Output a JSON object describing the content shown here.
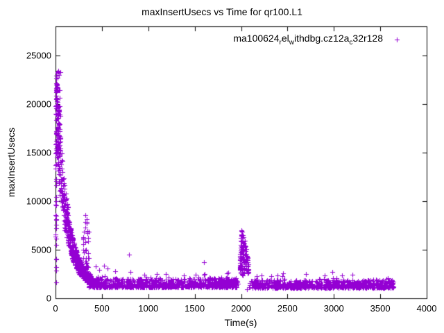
{
  "figure": {
    "background": "#ffffff",
    "border_color": "#000000",
    "text_color": "#000000"
  },
  "chart_data": {
    "type": "scatter",
    "title": "maxInsertUsecs vs Time for qr100.L1",
    "xlabel": "Time(s)",
    "ylabel": "maxInsertUsecs",
    "xlim": [
      0,
      4000
    ],
    "ylim": [
      0,
      28000
    ],
    "xticks": [
      0,
      500,
      1000,
      1500,
      2000,
      2500,
      3000,
      3500,
      4000
    ],
    "yticks": [
      0,
      5000,
      10000,
      15000,
      20000,
      25000
    ],
    "grid": false,
    "legend_position": "top-right-inside",
    "series": [
      {
        "name": "ma100624_rel_withdbg.cz12a_c32r128",
        "label_segments": [
          {
            "text": "ma100624"
          },
          {
            "text": "r",
            "sub": true
          },
          {
            "text": "el"
          },
          {
            "text": "w",
            "sub": true
          },
          {
            "text": "ithdbg.cz12a"
          },
          {
            "text": "c",
            "sub": true
          },
          {
            "text": "32r128"
          }
        ],
        "marker": "plus",
        "color": "#9400d3",
        "summary": "Warmup decay from ~23500 usec near t=0 down to a steady band of ~1100-2100 usec after t=500; secondary bump ~3000-8500 usec near t=300-360; isolated outliers near (800,4500) and (1600,3700); spike cluster ~2300-7000 usec near t=2000; steady ~1100-1900 usec band until data ends near t=3650.",
        "points_explicit": [
          [
            30,
            23450
          ],
          [
            22,
            22700
          ],
          [
            40,
            21400
          ],
          [
            10,
            20600
          ],
          [
            48,
            19800
          ],
          [
            795,
            4480
          ],
          [
            805,
            2700
          ],
          [
            1600,
            3720
          ],
          [
            325,
            8550
          ],
          [
            333,
            8150
          ],
          [
            318,
            7300
          ],
          [
            345,
            6900
          ],
          [
            352,
            6200
          ],
          [
            2005,
            7000
          ],
          [
            2012,
            6850
          ],
          [
            2002,
            6600
          ],
          [
            2450,
            2600
          ],
          [
            2980,
            2700
          ],
          [
            3200,
            2450
          ],
          [
            2700,
            2500
          ],
          [
            2060,
            950
          ],
          [
            1380,
            2350
          ],
          [
            960,
            2400
          ],
          [
            640,
            2800
          ],
          [
            560,
            3100
          ],
          [
            520,
            3350
          ],
          [
            470,
            2900
          ],
          [
            430,
            3300
          ],
          [
            5,
            1650
          ]
        ],
        "point_generator": {
          "seed": 20240610,
          "segments": [
            {
              "kind": "column",
              "n": 35,
              "t_range": [
                0,
                12
              ],
              "y_range": [
                1500,
                21000
              ]
            },
            {
              "kind": "cloud",
              "n": 60,
              "t_range": [
                6,
                55
              ],
              "y_range": [
                15000,
                23400
              ],
              "bias": 1.4
            },
            {
              "kind": "decay",
              "n": 560,
              "t_range": [
                5,
                385
              ],
              "spread": 0.5,
              "center": [
                [
                  0,
                  20000
                ],
                [
                  20,
                  17800
                ],
                [
                  40,
                  14800
                ],
                [
                  60,
                  12400
                ],
                [
                  80,
                  10600
                ],
                [
                  100,
                  9300
                ],
                [
                  120,
                  8200
                ],
                [
                  140,
                  7100
                ],
                [
                  160,
                  6100
                ],
                [
                  180,
                  5300
                ],
                [
                  200,
                  4650
                ],
                [
                  230,
                  3850
                ],
                [
                  260,
                  3250
                ],
                [
                  300,
                  2650
                ],
                [
                  340,
                  2250
                ],
                [
                  385,
                  1950
                ]
              ]
            },
            {
              "kind": "cloud",
              "n": 45,
              "t_range": [
                295,
                360
              ],
              "y_range": [
                2600,
                8400
              ],
              "bias": 2.2
            },
            {
              "kind": "band",
              "n": 820,
              "t_range": [
                355,
                1965
              ],
              "y_base": 1150,
              "y_span": 900,
              "exp": 1.9
            },
            {
              "kind": "cloud",
              "n": 30,
              "t_range": [
                380,
                1960
              ],
              "y_range": [
                2000,
                2650
              ],
              "bias": 1.6
            },
            {
              "kind": "spike",
              "n": 130,
              "t_range": [
                1985,
                2080
              ],
              "y_floor": 2300,
              "bias": 0.8,
              "envelope": [
                [
                  1985,
                  3400
                ],
                [
                  1995,
                  6200
                ],
                [
                  2005,
                  7000
                ],
                [
                  2025,
                  6500
                ],
                [
                  2050,
                  5600
                ],
                [
                  2080,
                  3600
                ]
              ]
            },
            {
              "kind": "band",
              "n": 760,
              "t_range": [
                2080,
                3645
              ],
              "y_base": 1100,
              "y_span": 800,
              "exp": 2.0
            },
            {
              "kind": "cloud",
              "n": 18,
              "t_range": [
                2150,
                3600
              ],
              "y_range": [
                1900,
                2450
              ],
              "bias": 1.5
            }
          ]
        }
      }
    ]
  }
}
